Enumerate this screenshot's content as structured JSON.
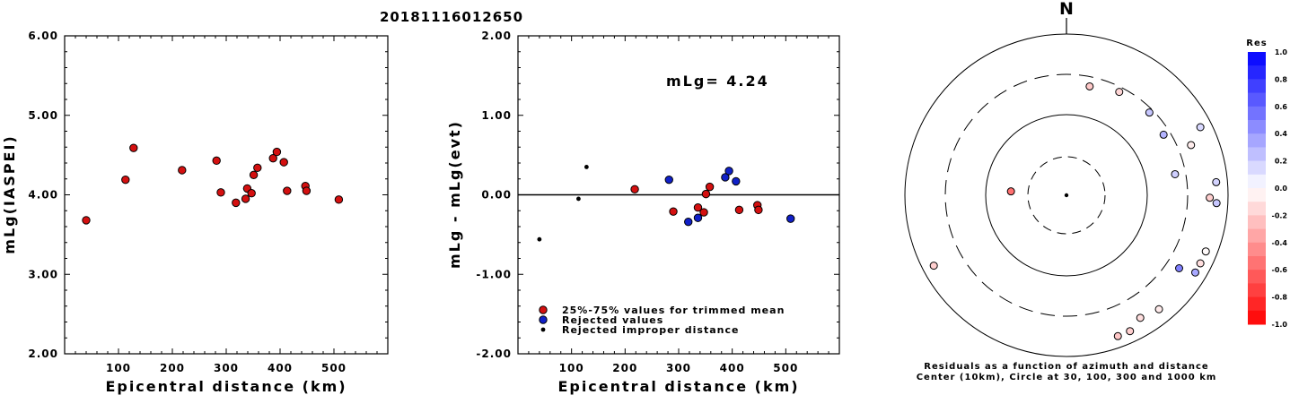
{
  "title": "20181116012650",
  "colors": {
    "accepted": "#d41010",
    "rejected": "#1020c8",
    "improper": "#000000"
  },
  "chart_data": [
    {
      "type": "scatter",
      "xlabel": "Epicentral distance (km)",
      "ylabel": "mLg(IASPEI)",
      "xlim": [
        0,
        600
      ],
      "ylim": [
        2.0,
        6.0
      ],
      "xticks": [
        "100",
        "200",
        "300",
        "400",
        "500"
      ],
      "yticks": [
        "2.00",
        "3.00",
        "4.00",
        "5.00",
        "6.00"
      ],
      "points": [
        {
          "x": 40,
          "y": 3.68
        },
        {
          "x": 113,
          "y": 4.19
        },
        {
          "x": 128,
          "y": 4.59
        },
        {
          "x": 218,
          "y": 4.31
        },
        {
          "x": 282,
          "y": 4.43
        },
        {
          "x": 290,
          "y": 4.03
        },
        {
          "x": 318,
          "y": 3.9
        },
        {
          "x": 336,
          "y": 3.95
        },
        {
          "x": 339,
          "y": 4.08
        },
        {
          "x": 347,
          "y": 4.02
        },
        {
          "x": 351,
          "y": 4.25
        },
        {
          "x": 358,
          "y": 4.34
        },
        {
          "x": 387,
          "y": 4.46
        },
        {
          "x": 394,
          "y": 4.54
        },
        {
          "x": 407,
          "y": 4.41
        },
        {
          "x": 413,
          "y": 4.05
        },
        {
          "x": 447,
          "y": 4.11
        },
        {
          "x": 449,
          "y": 4.05
        },
        {
          "x": 509,
          "y": 3.94
        }
      ]
    },
    {
      "type": "scatter",
      "xlabel": "Epicentral distance (km)",
      "ylabel": "mLg - mLg(evt)",
      "xlim": [
        0,
        600
      ],
      "ylim": [
        -2.0,
        2.0
      ],
      "xticks": [
        "100",
        "200",
        "300",
        "400",
        "500"
      ],
      "yticks": [
        "-2.00",
        "-1.00",
        "0.00",
        "1.00",
        "2.00"
      ],
      "zero_line": 0.0,
      "annotation": "mLg= 4.24",
      "series": [
        {
          "name": "25%-75% values for trimmed mean",
          "color": "#d41010",
          "points": [
            {
              "x": 218,
              "y": 0.07
            },
            {
              "x": 290,
              "y": -0.21
            },
            {
              "x": 336,
              "y": -0.16
            },
            {
              "x": 347,
              "y": -0.22
            },
            {
              "x": 351,
              "y": 0.01
            },
            {
              "x": 358,
              "y": 0.1
            },
            {
              "x": 413,
              "y": -0.19
            },
            {
              "x": 447,
              "y": -0.13
            },
            {
              "x": 449,
              "y": -0.19
            }
          ]
        },
        {
          "name": "Rejected values",
          "color": "#1020c8",
          "points": [
            {
              "x": 282,
              "y": 0.19
            },
            {
              "x": 318,
              "y": -0.34
            },
            {
              "x": 336,
              "y": -0.29
            },
            {
              "x": 387,
              "y": 0.22
            },
            {
              "x": 394,
              "y": 0.3
            },
            {
              "x": 407,
              "y": 0.17
            },
            {
              "x": 509,
              "y": -0.3
            }
          ]
        },
        {
          "name": "Rejected improper distance",
          "color": "#000000",
          "points": [
            {
              "x": 40,
              "y": -0.56
            },
            {
              "x": 113,
              "y": -0.05
            },
            {
              "x": 128,
              "y": 0.35
            }
          ]
        }
      ]
    },
    {
      "type": "scatter",
      "subtype": "polar",
      "north_label": "N",
      "caption_line1": "Residuals as a function of azimuth and distance",
      "caption_line2": "Center (10km), Circle at 30, 100, 300 and 1000 km",
      "colorbar_title": "Res",
      "colorbar_ticks": [
        "1.0",
        "0.8",
        "0.6",
        "0.4",
        "0.2",
        "0.0",
        "-0.2",
        "-0.4",
        "-0.6",
        "-0.8",
        "-1.0"
      ],
      "points": [
        {
          "azimuth": 12,
          "distance": 290,
          "residual": -0.21
        },
        {
          "azimuth": 27,
          "distance": 336,
          "residual": -0.16
        },
        {
          "azimuth": 45,
          "distance": 347,
          "residual": 0.22
        },
        {
          "azimuth": 58,
          "distance": 318,
          "residual": 0.3
        },
        {
          "azimuth": 63,
          "distance": 1000,
          "residual": 0.15
        },
        {
          "azimuth": 68,
          "distance": 600,
          "residual": -0.07
        },
        {
          "azimuth": 79,
          "distance": 282,
          "residual": 0.19
        },
        {
          "azimuth": 85,
          "distance": 1050,
          "residual": 0.17
        },
        {
          "azimuth": 91,
          "distance": 800,
          "residual": -0.19
        },
        {
          "azimuth": 93,
          "distance": 1100,
          "residual": 0.22
        },
        {
          "azimuth": 112,
          "distance": 1000,
          "residual": -0.02
        },
        {
          "azimuth": 117,
          "distance": 1070,
          "residual": -0.13
        },
        {
          "azimuth": 121,
          "distance": 1050,
          "residual": 0.34
        },
        {
          "azimuth": 123,
          "distance": 600,
          "residual": 0.5
        },
        {
          "azimuth": 141,
          "distance": 900,
          "residual": -0.08
        },
        {
          "azimuth": 149,
          "distance": 800,
          "residual": -0.13
        },
        {
          "azimuth": 155,
          "distance": 1000,
          "residual": -0.19
        },
        {
          "azimuth": 160,
          "distance": 1100,
          "residual": -0.22
        },
        {
          "azimuth": 242,
          "distance": 1000,
          "residual": -0.19
        },
        {
          "azimuth": 274,
          "distance": 55,
          "residual": -0.56
        }
      ]
    }
  ]
}
